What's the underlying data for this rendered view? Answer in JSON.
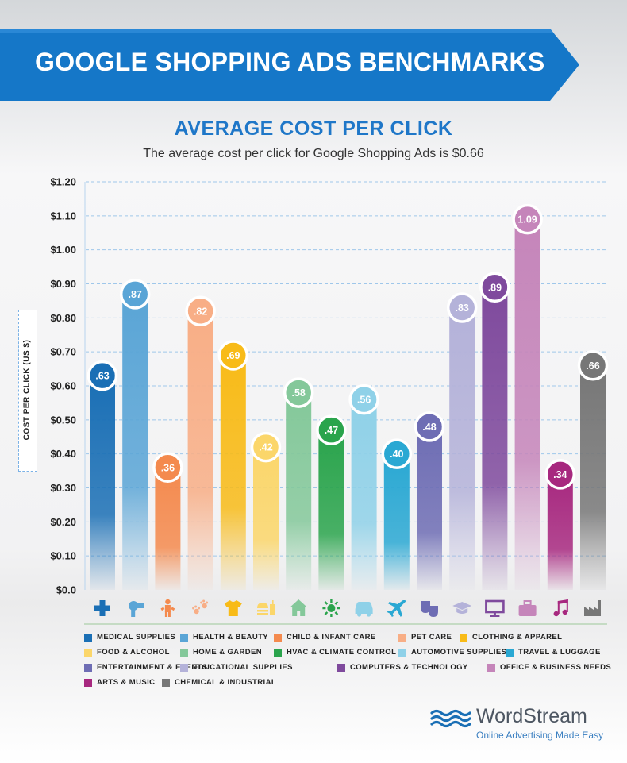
{
  "header": {
    "title": "GOOGLE SHOPPING ADS BENCHMARKS"
  },
  "chart_data": {
    "type": "bar",
    "title": "AVERAGE COST PER CLICK",
    "subtitle": "The average cost per click for Google Shopping Ads is $0.66",
    "ylabel": "COST PER CLICK (US $)",
    "xlabel": "",
    "ylim": [
      0,
      1.2
    ],
    "yticks": [
      "$0.0",
      "$0.10",
      "$0.20",
      "$0.30",
      "$0.40",
      "$0.50",
      "$0.60",
      "$0.70",
      "$0.80",
      "$0.90",
      "$1.00",
      "$1.10",
      "$1.20"
    ],
    "grid": true,
    "legend_position": "bottom",
    "categories": [
      "MEDICAL SUPPLIES",
      "HEALTH & BEAUTY",
      "CHILD & INFANT CARE",
      "PET CARE",
      "CLOTHING & APPAREL",
      "FOOD & ALCOHOL",
      "HOME & GARDEN",
      "HVAC & CLIMATE CONTROL",
      "AUTOMOTIVE SUPPLIES",
      "TRAVEL & LUGGAGE",
      "ENTERTAINMENT & EVENTS",
      "EDUCATIONAL SUPPLIES",
      "COMPUTERS & TECHNOLOGY",
      "OFFICE & BUSINESS NEEDS",
      "ARTS & MUSIC",
      "CHEMICAL & INDUSTRIAL"
    ],
    "values": [
      0.63,
      0.87,
      0.36,
      0.82,
      0.69,
      0.42,
      0.58,
      0.47,
      0.56,
      0.4,
      0.48,
      0.83,
      0.89,
      1.09,
      0.34,
      0.66
    ],
    "value_labels": [
      ".63",
      ".87",
      ".36",
      ".82",
      ".69",
      ".42",
      ".58",
      ".47",
      ".56",
      ".40",
      ".48",
      ".83",
      ".89",
      "1.09",
      ".34",
      ".66"
    ],
    "colors": [
      "#1a6fb5",
      "#5aa5d6",
      "#f48a4e",
      "#f8ae86",
      "#f8bb18",
      "#fbd66a",
      "#84c89a",
      "#2aa44c",
      "#8fd1e8",
      "#2aa8d3",
      "#6e6db4",
      "#b4b2d9",
      "#7f4a9d",
      "#c585ba",
      "#a7287f",
      "#777777"
    ],
    "icons": [
      "medical-cross-icon",
      "hair-dryer-icon",
      "child-icon",
      "paw-prints-icon",
      "t-shirt-icon",
      "food-drink-icon",
      "house-icon",
      "sun-snowflake-icon",
      "car-icon",
      "airplane-icon",
      "theater-masks-icon",
      "graduation-cap-icon",
      "computer-monitor-icon",
      "briefcase-icon",
      "music-note-icon",
      "factory-icon"
    ]
  },
  "brand": {
    "name": "WordStream",
    "tagline": "Online Advertising Made Easy"
  }
}
